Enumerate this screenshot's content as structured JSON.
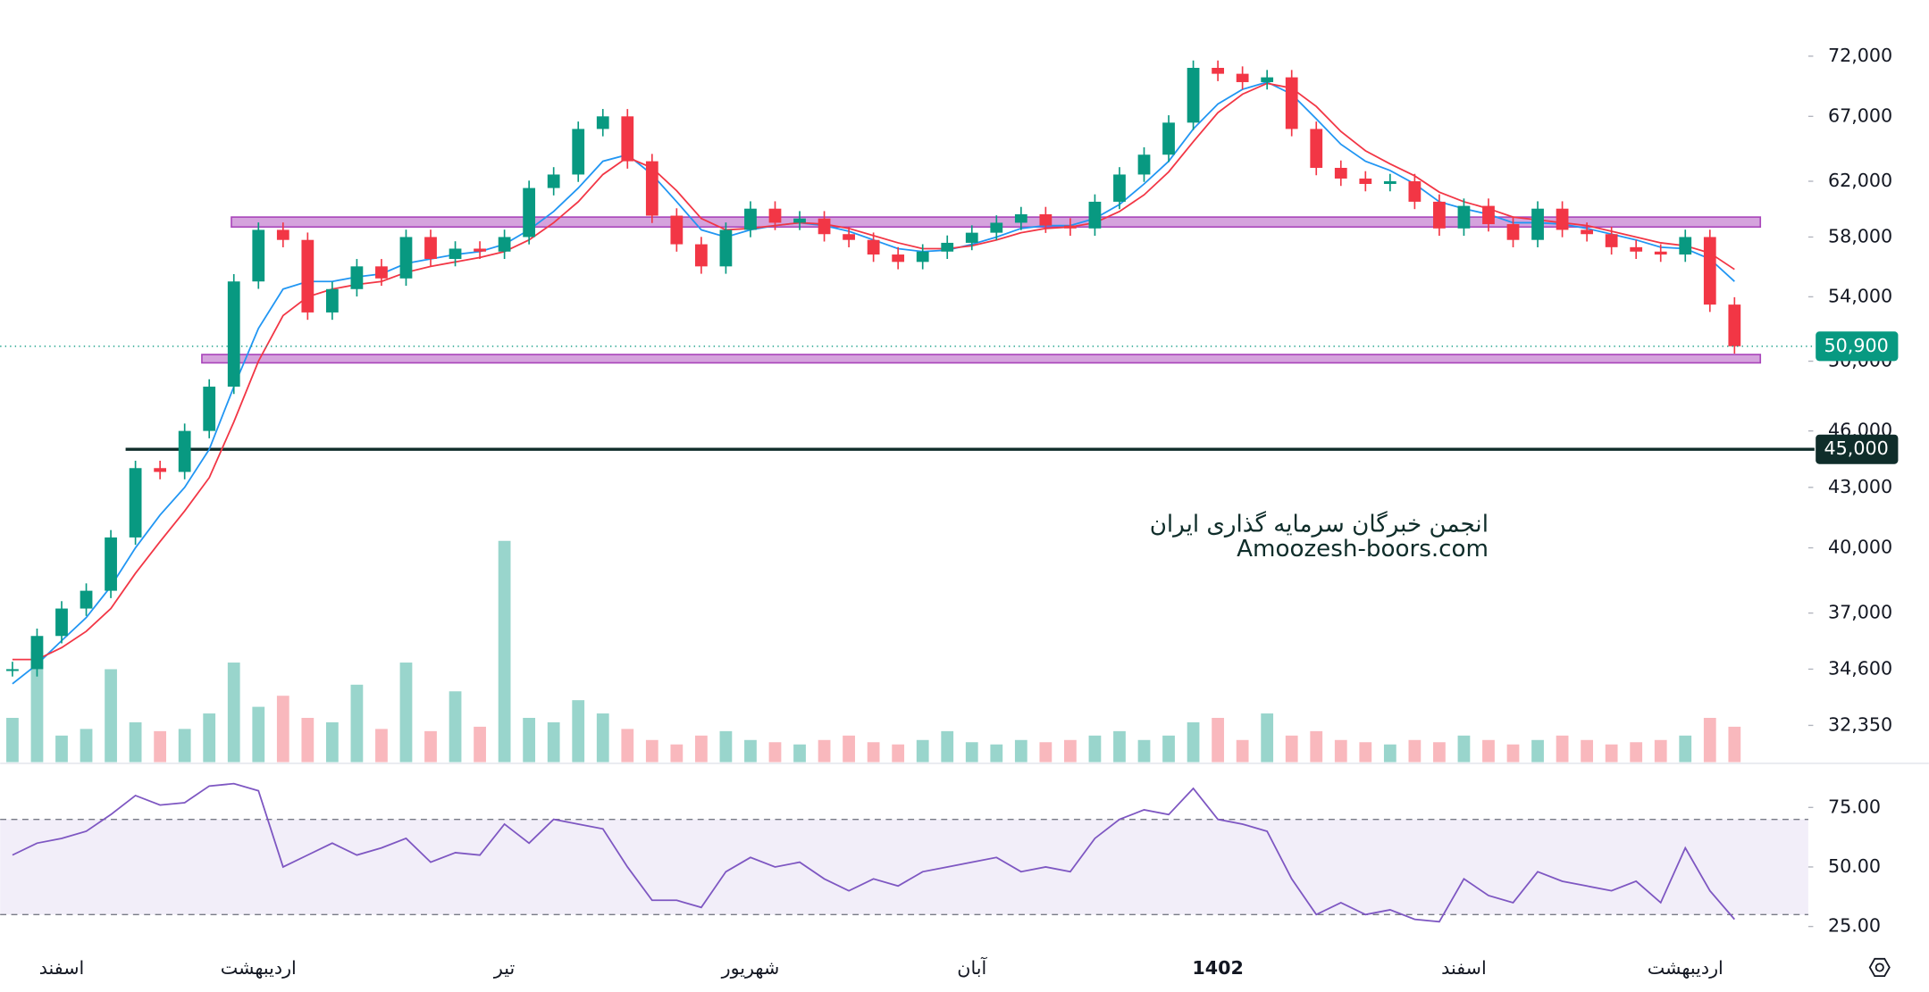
{
  "chart_data": {
    "type": "candlestick",
    "categories": [
      null,
      null,
      "اسفند",
      null,
      null,
      null,
      null,
      null,
      null,
      null,
      "اردیبهشت",
      null,
      null,
      null,
      null,
      null,
      null,
      null,
      null,
      null,
      "تیر",
      null,
      null,
      null,
      null,
      null,
      null,
      null,
      null,
      null,
      "شهریور",
      null,
      null,
      null,
      null,
      null,
      null,
      null,
      null,
      "آبان",
      null,
      null,
      null,
      null,
      null,
      null,
      null,
      null,
      null,
      "1402",
      null,
      null,
      null,
      null,
      null,
      null,
      null,
      null,
      null,
      "اسفند",
      null,
      null,
      null,
      null,
      null,
      null,
      null,
      null,
      "اردیبهشت",
      null,
      null
    ],
    "close": [
      34600,
      36000,
      37200,
      38000,
      40500,
      44000,
      43800,
      46000,
      48500,
      55000,
      58500,
      57800,
      53000,
      54500,
      56000,
      55200,
      58000,
      56500,
      57200,
      57000,
      58000,
      61500,
      62500,
      66000,
      67000,
      63500,
      59500,
      57500,
      56000,
      58500,
      60000,
      59000,
      59300,
      58200,
      57800,
      56800,
      56300,
      57000,
      57600,
      58300,
      59000,
      59600,
      58800,
      58600,
      60500,
      62500,
      64000,
      66500,
      71000,
      70500,
      69800,
      70200,
      66000,
      63000,
      62200,
      61800,
      62000,
      60500,
      58600,
      60200,
      58900,
      57800,
      60000,
      58500,
      58200,
      57300,
      57000,
      56800,
      58000,
      53500,
      50900
    ],
    "up_color": "#089981",
    "down_color": "#f23645",
    "moving_averages": [
      {
        "color": "#2196f3",
        "values": [
          34000,
          34800,
          35800,
          36800,
          38200,
          40000,
          41600,
          43000,
          45000,
          48500,
          52000,
          54500,
          55000,
          55000,
          55300,
          55500,
          56200,
          56500,
          56800,
          57000,
          57500,
          58500,
          59800,
          61500,
          63500,
          64000,
          62500,
          60500,
          58500,
          58000,
          58500,
          58800,
          59000,
          58800,
          58400,
          57800,
          57200,
          57000,
          57100,
          57500,
          58000,
          58600,
          58800,
          58800,
          59300,
          60300,
          61800,
          63500,
          66000,
          68000,
          69200,
          69800,
          68800,
          66800,
          64800,
          63500,
          62800,
          61800,
          60500,
          60000,
          59600,
          59000,
          59000,
          58900,
          58600,
          58200,
          57800,
          57300,
          57200,
          56500,
          55000
        ]
      },
      {
        "color": "#f23645",
        "values": [
          35000,
          35000,
          35500,
          36200,
          37200,
          38800,
          40300,
          41800,
          43500,
          46500,
          50000,
          52800,
          54000,
          54500,
          54800,
          55000,
          55600,
          56000,
          56300,
          56600,
          57000,
          57800,
          59000,
          60500,
          62500,
          63800,
          63000,
          61300,
          59300,
          58500,
          58600,
          58800,
          59000,
          58900,
          58600,
          58100,
          57600,
          57200,
          57200,
          57400,
          57800,
          58300,
          58600,
          58700,
          59000,
          59800,
          61000,
          62700,
          65000,
          67300,
          68800,
          69700,
          69300,
          67800,
          65800,
          64300,
          63300,
          62400,
          61200,
          60500,
          60000,
          59400,
          59200,
          59000,
          58800,
          58400,
          58000,
          57600,
          57400,
          56900,
          55800
        ]
      }
    ],
    "volume": {
      "values": [
        20,
        50,
        12,
        15,
        42,
        18,
        14,
        15,
        22,
        45,
        25,
        30,
        20,
        18,
        35,
        15,
        45,
        14,
        32,
        16,
        100,
        20,
        18,
        28,
        22,
        15,
        10,
        8,
        12,
        14,
        10,
        9,
        8,
        10,
        12,
        9,
        8,
        10,
        14,
        9,
        8,
        10,
        9,
        10,
        12,
        14,
        10,
        12,
        18,
        20,
        10,
        22,
        12,
        14,
        10,
        9,
        8,
        10,
        9,
        12,
        10,
        8,
        10,
        12,
        10,
        8,
        9,
        10,
        12,
        20,
        16
      ],
      "up_color": "#7fcbbf",
      "down_color": "#f7a6ad"
    },
    "ylim": [
      30960,
      77000
    ],
    "log_scale": true,
    "yticks": [
      {
        "value": 72000,
        "label": "72,000"
      },
      {
        "value": 67000,
        "label": "67,000"
      },
      {
        "value": 62000,
        "label": "62,000"
      },
      {
        "value": 58000,
        "label": "58,000"
      },
      {
        "value": 54000,
        "label": "54,000"
      },
      {
        "value": 50000,
        "label": "50,000"
      },
      {
        "value": 46000,
        "label": "46,000"
      },
      {
        "value": 43000,
        "label": "43,000"
      },
      {
        "value": 40000,
        "label": "40,000"
      },
      {
        "value": 37000,
        "label": "37,000"
      },
      {
        "value": 34600,
        "label": "34,600"
      },
      {
        "value": 32350,
        "label": "32,350"
      }
    ],
    "zones": [
      {
        "low": 58700,
        "high": 59400
      },
      {
        "low": 49900,
        "high": 50400
      }
    ],
    "zone_color": "#ce93d8",
    "levels": [
      {
        "value": 45000,
        "label": "45,000",
        "color": "#0f2d2a"
      }
    ],
    "last_price": {
      "value": 50900,
      "label": "50,900",
      "color": "#089981"
    },
    "rsi": {
      "values": [
        55,
        60,
        62,
        65,
        72,
        80,
        76,
        77,
        84,
        85,
        82,
        50,
        55,
        60,
        55,
        58,
        62,
        52,
        56,
        55,
        68,
        60,
        70,
        68,
        66,
        50,
        36,
        36,
        33,
        48,
        54,
        50,
        52,
        45,
        40,
        45,
        42,
        48,
        50,
        52,
        54,
        48,
        50,
        48,
        62,
        70,
        74,
        72,
        83,
        70,
        68,
        65,
        45,
        30,
        35,
        30,
        32,
        28,
        27,
        45,
        38,
        35,
        48,
        44,
        42,
        40,
        44,
        35,
        58,
        40,
        28
      ],
      "color": "#7e57c2",
      "ylim": [
        14,
        93
      ],
      "yticks": [
        {
          "value": 75,
          "label": "75.00"
        },
        {
          "value": 50,
          "label": "50.00"
        },
        {
          "value": 25,
          "label": "25.00"
        }
      ],
      "bands": [
        30,
        70
      ]
    },
    "watermark": [
      "انجمن خبرگان سرمایه گذاری ایران",
      "Amoozesh-boors.com"
    ]
  }
}
